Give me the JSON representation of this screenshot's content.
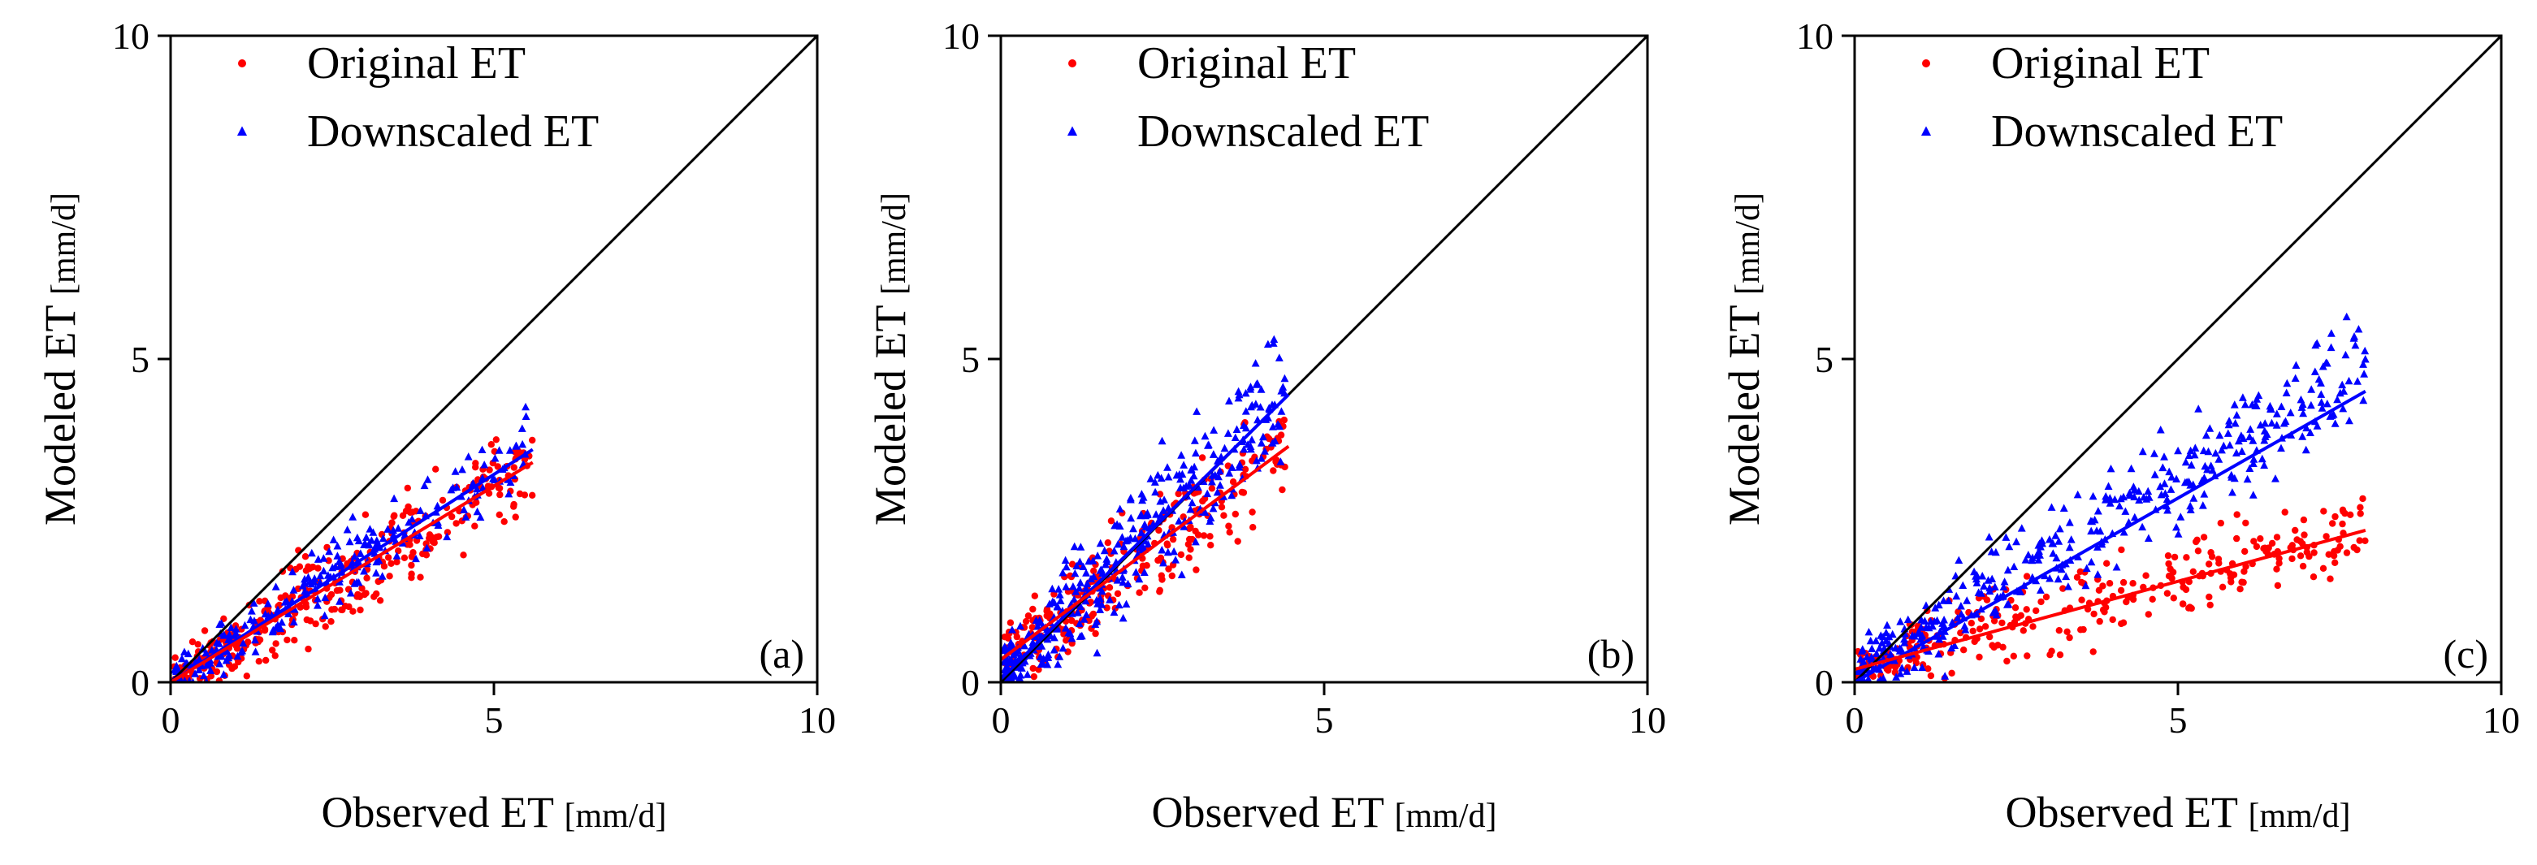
{
  "figure_description_free": true,
  "chart_data": [
    {
      "type": "scatter",
      "panel_label": "(a)",
      "xlabel": "Observed ET",
      "xunit": "[mm/d]",
      "ylabel": "Modeled ET",
      "yunit": "[mm/d]",
      "xlim": [
        0,
        10
      ],
      "ylim": [
        0,
        10
      ],
      "xticks": [
        "0",
        "5",
        "10"
      ],
      "yticks": [
        "0",
        "5",
        "10"
      ],
      "grid": false,
      "legend_position": "top-left",
      "reference_line": {
        "name": "1:1 line",
        "x": [
          0,
          10
        ],
        "y": [
          0,
          10
        ],
        "color": "#000000"
      },
      "series": [
        {
          "name": "Original ET",
          "marker": "circle",
          "color": "#ff0000",
          "cloud": {
            "x_min": 0.05,
            "x_max": 5.6,
            "slope": 0.61,
            "intercept": 0.0,
            "spread": 0.5,
            "count": 340
          },
          "fit": {
            "x": [
              0,
              5.6
            ],
            "y": [
              0.0,
              3.4
            ]
          }
        },
        {
          "name": "Downscaled ET",
          "marker": "triangle",
          "color": "#0000ff",
          "cloud": {
            "x_min": 0.05,
            "x_max": 5.5,
            "slope": 0.64,
            "intercept": 0.0,
            "spread": 0.4,
            "count": 260
          },
          "fit": {
            "x": [
              0,
              5.6
            ],
            "y": [
              0.0,
              3.6
            ]
          }
        }
      ]
    },
    {
      "type": "scatter",
      "panel_label": "(b)",
      "xlabel": "Observed ET",
      "xunit": "[mm/d]",
      "ylabel": "Modeled ET",
      "yunit": "[mm/d]",
      "xlim": [
        0,
        10
      ],
      "ylim": [
        0,
        10
      ],
      "xticks": [
        "0",
        "5",
        "10"
      ],
      "yticks": [
        "0",
        "5",
        "10"
      ],
      "grid": false,
      "legend_position": "top-left",
      "reference_line": {
        "name": "1:1 line",
        "x": [
          0,
          10
        ],
        "y": [
          0,
          10
        ],
        "color": "#000000"
      },
      "series": [
        {
          "name": "Original ET",
          "marker": "circle",
          "color": "#ff0000",
          "cloud": {
            "x_min": 0.05,
            "x_max": 4.4,
            "slope": 0.74,
            "intercept": 0.35,
            "spread": 0.6,
            "count": 260
          },
          "fit": {
            "x": [
              0,
              4.45
            ],
            "y": [
              0.35,
              3.65
            ]
          }
        },
        {
          "name": "Downscaled ET",
          "marker": "triangle",
          "color": "#0000ff",
          "cloud": {
            "x_min": 0.05,
            "x_max": 4.4,
            "slope": 1.0,
            "intercept": 0.05,
            "spread": 0.7,
            "count": 380
          },
          "fit": {
            "x": [
              0,
              4.45
            ],
            "y": [
              0.05,
              4.45
            ]
          }
        }
      ]
    },
    {
      "type": "scatter",
      "panel_label": "(c)",
      "xlabel": "Observed ET",
      "xunit": "[mm/d]",
      "ylabel": "Modeled ET",
      "yunit": "[mm/d]",
      "xlim": [
        0,
        10
      ],
      "ylim": [
        0,
        10
      ],
      "xticks": [
        "0",
        "5",
        "10"
      ],
      "yticks": [
        "0",
        "5",
        "10"
      ],
      "grid": false,
      "legend_position": "top-left",
      "reference_line": {
        "name": "1:1 line",
        "x": [
          0,
          10
        ],
        "y": [
          0,
          10
        ],
        "color": "#000000"
      },
      "series": [
        {
          "name": "Original ET",
          "marker": "circle",
          "color": "#ff0000",
          "cloud": {
            "x_min": 0.05,
            "x_max": 7.9,
            "slope": 0.27,
            "intercept": 0.25,
            "spread": 0.45,
            "count": 300
          },
          "fit": {
            "x": [
              0,
              7.9
            ],
            "y": [
              0.2,
              2.35
            ]
          }
        },
        {
          "name": "Downscaled ET",
          "marker": "triangle",
          "color": "#0000ff",
          "cloud": {
            "x_min": 0.05,
            "x_max": 7.9,
            "slope": 0.6,
            "intercept": 0.15,
            "spread": 0.55,
            "count": 420
          },
          "fit": {
            "x": [
              0,
              7.9
            ],
            "y": [
              0.0,
              4.5
            ]
          }
        }
      ]
    }
  ]
}
